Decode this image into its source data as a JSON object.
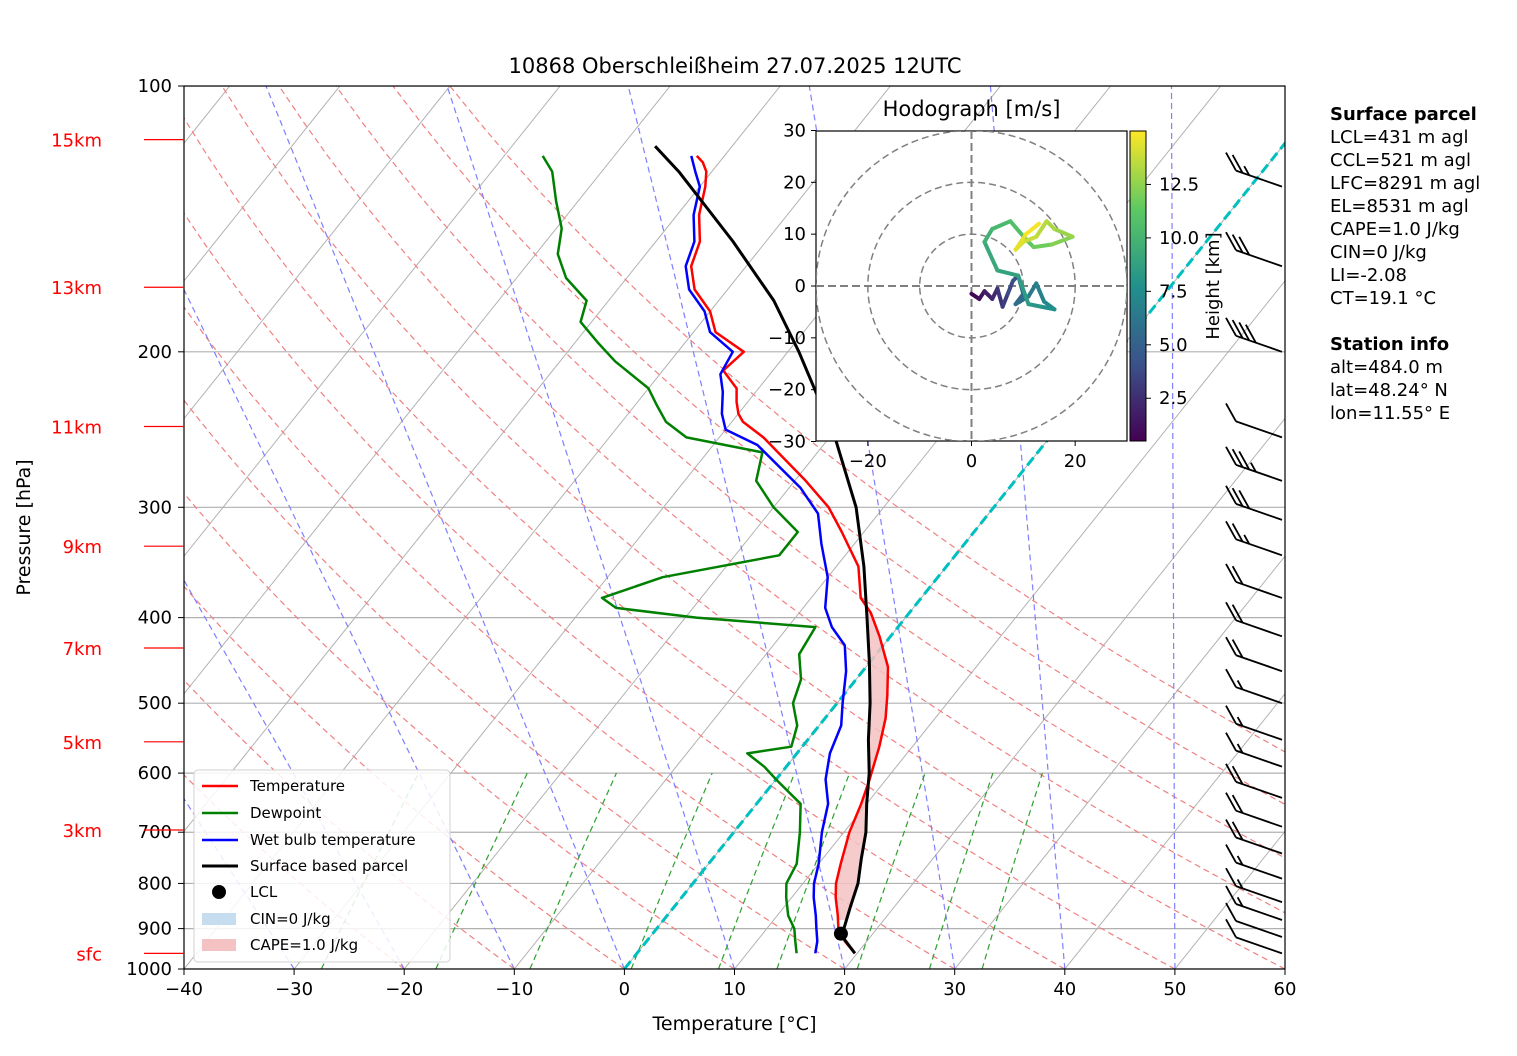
{
  "chart_data": {
    "type": "line",
    "title": "10868 Oberschleißheim 27.07.2025 12UTC",
    "xlabel": "Temperature [°C]",
    "ylabel": "Pressure [hPa]",
    "xlim": [
      -40,
      60
    ],
    "ylim": [
      1000,
      100
    ],
    "y_scale": "log",
    "x_ticks": [
      "−40",
      "−30",
      "−20",
      "−10",
      "0",
      "10",
      "20",
      "30",
      "40",
      "50",
      "60"
    ],
    "y_ticks": [
      {
        "p": 100,
        "label": "100"
      },
      {
        "p": 200,
        "label": "200"
      },
      {
        "p": 300,
        "label": "300"
      },
      {
        "p": 400,
        "label": "400"
      },
      {
        "p": 500,
        "label": "500"
      },
      {
        "p": 600,
        "label": "600"
      },
      {
        "p": 700,
        "label": "700"
      },
      {
        "p": 800,
        "label": "800"
      },
      {
        "p": 900,
        "label": "900"
      },
      {
        "p": 1000,
        "label": "1000"
      }
    ],
    "height_labels": [
      {
        "p": 960,
        "label": "sfc"
      },
      {
        "p": 696,
        "label": "3km"
      },
      {
        "p": 553,
        "label": "5km"
      },
      {
        "p": 433,
        "label": "7km"
      },
      {
        "p": 332,
        "label": "9km"
      },
      {
        "p": 243,
        "label": "11km"
      },
      {
        "p": 169,
        "label": "13km"
      },
      {
        "p": 115,
        "label": "15km"
      }
    ],
    "grid": true,
    "legend_position": "lower-left",
    "legend": [
      "Temperature",
      "Dewpoint",
      "Wet bulb temperature",
      "Surface based parcel",
      "LCL",
      "CIN=0 J/kg",
      "CAPE=1.0 J/kg"
    ],
    "colors": {
      "temperature": "#ff0000",
      "dewpoint": "#008000",
      "wetbulb": "#0000ff",
      "parcel": "#000000",
      "cape_fill": "#f4c2c2",
      "cin_fill": "#c6dcef",
      "height_axis": "#ff0000",
      "isotherm_zero": "#00bfbf"
    },
    "series": [
      {
        "name": "Temperature",
        "points": [
          [
            19.8,
            960
          ],
          [
            18.0,
            930
          ],
          [
            16.5,
            900
          ],
          [
            15.5,
            870
          ],
          [
            14.0,
            830
          ],
          [
            13.0,
            800
          ],
          [
            12.0,
            760
          ],
          [
            10.5,
            700
          ],
          [
            9.5,
            650
          ],
          [
            8.5,
            610
          ],
          [
            7.0,
            560
          ],
          [
            5.5,
            520
          ],
          [
            4.0,
            490
          ],
          [
            2.0,
            455
          ],
          [
            -1.0,
            420
          ],
          [
            -3.5,
            395
          ],
          [
            -5.5,
            380
          ],
          [
            -8.0,
            350
          ],
          [
            -12.0,
            320
          ],
          [
            -15.0,
            300
          ],
          [
            -19.0,
            280
          ],
          [
            -26.0,
            250
          ],
          [
            -29.0,
            240
          ],
          [
            -30.0,
            235
          ],
          [
            -31.0,
            228
          ],
          [
            -32.0,
            220
          ],
          [
            -34.5,
            210
          ],
          [
            -34.0,
            200
          ],
          [
            -38.0,
            190
          ],
          [
            -40.0,
            180
          ],
          [
            -43.0,
            170
          ],
          [
            -45.0,
            160
          ],
          [
            -46.0,
            150
          ],
          [
            -48.0,
            140
          ],
          [
            -49.5,
            130
          ],
          [
            -50.5,
            125
          ],
          [
            -51.5,
            122
          ],
          [
            -52.5,
            120
          ]
        ]
      },
      {
        "name": "Dewpoint",
        "points": [
          [
            14.5,
            960
          ],
          [
            13.5,
            930
          ],
          [
            12.5,
            900
          ],
          [
            11.0,
            870
          ],
          [
            9.5,
            830
          ],
          [
            8.5,
            800
          ],
          [
            8.0,
            760
          ],
          [
            6.0,
            700
          ],
          [
            4.0,
            650
          ],
          [
            0.0,
            610
          ],
          [
            -2.0,
            590
          ],
          [
            -4.5,
            570
          ],
          [
            -1.0,
            560
          ],
          [
            -2.0,
            530
          ],
          [
            -4.0,
            500
          ],
          [
            -5.0,
            470
          ],
          [
            -7.0,
            440
          ],
          [
            -7.5,
            410
          ],
          [
            -19.0,
            400
          ],
          [
            -27.0,
            390
          ],
          [
            -29.0,
            380
          ],
          [
            -25.0,
            360
          ],
          [
            -16.0,
            340
          ],
          [
            -16.0,
            320
          ],
          [
            -20.0,
            300
          ],
          [
            -23.5,
            280
          ],
          [
            -25.0,
            260
          ],
          [
            -33.0,
            250
          ],
          [
            -36.0,
            240
          ],
          [
            -38.0,
            230
          ],
          [
            -40.0,
            220
          ],
          [
            -45.0,
            205
          ],
          [
            -48.0,
            195
          ],
          [
            -51.0,
            185
          ],
          [
            -52.0,
            175
          ],
          [
            -55.5,
            165
          ],
          [
            -58.0,
            155
          ],
          [
            -59.5,
            145
          ],
          [
            -62.0,
            135
          ],
          [
            -64.5,
            125
          ],
          [
            -66.5,
            120
          ]
        ]
      },
      {
        "name": "Wet bulb temperature",
        "points": [
          [
            16.2,
            960
          ],
          [
            15.5,
            930
          ],
          [
            14.5,
            900
          ],
          [
            13.5,
            870
          ],
          [
            12.0,
            830
          ],
          [
            11.0,
            800
          ],
          [
            10.0,
            760
          ],
          [
            8.0,
            700
          ],
          [
            6.5,
            650
          ],
          [
            4.5,
            610
          ],
          [
            3.0,
            570
          ],
          [
            2.0,
            530
          ],
          [
            0.5,
            500
          ],
          [
            -1.5,
            460
          ],
          [
            -3.5,
            430
          ],
          [
            -6.0,
            410
          ],
          [
            -8.0,
            390
          ],
          [
            -10.0,
            360
          ],
          [
            -13.0,
            330
          ],
          [
            -15.5,
            305
          ],
          [
            -19.0,
            285
          ],
          [
            -26.0,
            255
          ],
          [
            -30.0,
            245
          ],
          [
            -31.5,
            235
          ],
          [
            -33.0,
            222
          ],
          [
            -34.5,
            212
          ],
          [
            -35.0,
            200
          ],
          [
            -38.5,
            190
          ],
          [
            -40.5,
            180
          ],
          [
            -43.5,
            170
          ],
          [
            -45.5,
            160
          ],
          [
            -46.5,
            150
          ],
          [
            -48.5,
            140
          ],
          [
            -50.0,
            130
          ],
          [
            -51.5,
            125
          ],
          [
            -53.0,
            120
          ]
        ]
      },
      {
        "name": "Surface based parcel",
        "points": [
          [
            19.8,
            960
          ],
          [
            17.2,
            915
          ],
          [
            17.0,
            900
          ],
          [
            16.0,
            850
          ],
          [
            15.0,
            800
          ],
          [
            13.5,
            750
          ],
          [
            12.0,
            700
          ],
          [
            10.0,
            650
          ],
          [
            8.0,
            600
          ],
          [
            5.5,
            550
          ],
          [
            3.0,
            500
          ],
          [
            0.0,
            450
          ],
          [
            -3.5,
            400
          ],
          [
            -7.5,
            350
          ],
          [
            -12.5,
            300
          ],
          [
            -19.5,
            250
          ],
          [
            -29.0,
            200
          ],
          [
            -35.0,
            175
          ],
          [
            -43.0,
            150
          ],
          [
            -53.0,
            125
          ],
          [
            -57.0,
            117
          ]
        ]
      }
    ],
    "lcl": {
      "label": "LCL",
      "t": 17.1,
      "p": 912
    },
    "cape_fill_range_hPa": [
      880,
      395
    ],
    "skew_isotherms_every_c": 10,
    "dry_adiabat_theta_c": [
      -20,
      -10,
      0,
      10,
      20,
      30,
      40,
      50,
      60,
      70,
      80,
      90,
      100
    ],
    "moist_adiabat_surface_c": [
      -30,
      -20,
      -10,
      0,
      10,
      20,
      30,
      40,
      50
    ],
    "mixing_ratio_lines": [
      0.4,
      1,
      2,
      4,
      7,
      10,
      16,
      24,
      32
    ],
    "wind_barbs": [
      {
        "p": 960,
        "speed_kt": 10
      },
      {
        "p": 920,
        "speed_kt": 10
      },
      {
        "p": 880,
        "speed_kt": 15
      },
      {
        "p": 840,
        "speed_kt": 15
      },
      {
        "p": 790,
        "speed_kt": 15
      },
      {
        "p": 740,
        "speed_kt": 20
      },
      {
        "p": 690,
        "speed_kt": 20
      },
      {
        "p": 640,
        "speed_kt": 20
      },
      {
        "p": 590,
        "speed_kt": 15
      },
      {
        "p": 550,
        "speed_kt": 15
      },
      {
        "p": 500,
        "speed_kt": 15
      },
      {
        "p": 460,
        "speed_kt": 20
      },
      {
        "p": 420,
        "speed_kt": 20
      },
      {
        "p": 380,
        "speed_kt": 20
      },
      {
        "p": 340,
        "speed_kt": 25
      },
      {
        "p": 310,
        "speed_kt": 30
      },
      {
        "p": 280,
        "speed_kt": 35
      },
      {
        "p": 250,
        "speed_kt": 10
      },
      {
        "p": 200,
        "speed_kt": 40
      },
      {
        "p": 160,
        "speed_kt": 30
      },
      {
        "p": 130,
        "speed_kt": 25
      }
    ]
  },
  "hodograph": {
    "title": "Hodograph [m/s]",
    "xlim": [
      -30,
      30
    ],
    "ylim": [
      -30,
      30
    ],
    "x_ticks": [
      "−20",
      "0",
      "20"
    ],
    "y_ticks": [
      {
        "v": 30,
        "label": "30"
      },
      {
        "v": 20,
        "label": "20"
      },
      {
        "v": 10,
        "label": "10"
      },
      {
        "v": 0,
        "label": "0"
      },
      {
        "v": -10,
        "label": "−10"
      },
      {
        "v": -20,
        "label": "−20"
      },
      {
        "v": -30,
        "label": "−30"
      }
    ],
    "rings_ms": [
      10,
      20,
      30
    ],
    "colorbar_label": "Height [km]",
    "colorbar_ticks": [
      {
        "v": 2.5,
        "label": "2.5"
      },
      {
        "v": 5.0,
        "label": "5.0"
      },
      {
        "v": 7.5,
        "label": "7.5"
      },
      {
        "v": 10.0,
        "label": "10.0"
      },
      {
        "v": 12.5,
        "label": "12.5"
      }
    ],
    "colorbar_range_km": [
      0.5,
      15.0
    ],
    "trace": [
      {
        "u": 0.0,
        "v": -1.5,
        "z": 0.5
      },
      {
        "u": 1.5,
        "v": -2.5,
        "z": 1.0
      },
      {
        "u": 2.5,
        "v": -1.0,
        "z": 1.5
      },
      {
        "u": 4.0,
        "v": -2.5,
        "z": 2.0
      },
      {
        "u": 5.0,
        "v": -0.5,
        "z": 2.5
      },
      {
        "u": 6.0,
        "v": -4.0,
        "z": 3.0
      },
      {
        "u": 7.0,
        "v": -1.5,
        "z": 3.5
      },
      {
        "u": 8.0,
        "v": 1.0,
        "z": 4.0
      },
      {
        "u": 9.0,
        "v": 2.0,
        "z": 4.5
      },
      {
        "u": 10.0,
        "v": -1.5,
        "z": 5.0
      },
      {
        "u": 8.5,
        "v": -3.5,
        "z": 5.5
      },
      {
        "u": 11.0,
        "v": -2.0,
        "z": 6.0
      },
      {
        "u": 12.5,
        "v": 0.5,
        "z": 6.5
      },
      {
        "u": 14.0,
        "v": -3.0,
        "z": 7.0
      },
      {
        "u": 16.0,
        "v": -4.5,
        "z": 7.5
      },
      {
        "u": 13.5,
        "v": -4.0,
        "z": 8.0
      },
      {
        "u": 11.0,
        "v": -3.5,
        "z": 8.3
      },
      {
        "u": 9.0,
        "v": 2.0,
        "z": 8.6
      },
      {
        "u": 5.0,
        "v": 3.0,
        "z": 9.0
      },
      {
        "u": 2.5,
        "v": 8.5,
        "z": 9.5
      },
      {
        "u": 4.0,
        "v": 11.0,
        "z": 10.0
      },
      {
        "u": 7.5,
        "v": 12.5,
        "z": 10.5
      },
      {
        "u": 10.5,
        "v": 9.0,
        "z": 11.0
      },
      {
        "u": 12.0,
        "v": 7.5,
        "z": 11.5
      },
      {
        "u": 15.5,
        "v": 8.0,
        "z": 12.0
      },
      {
        "u": 19.5,
        "v": 9.5,
        "z": 12.5
      },
      {
        "u": 16.0,
        "v": 11.0,
        "z": 13.0
      },
      {
        "u": 14.5,
        "v": 12.5,
        "z": 13.3
      },
      {
        "u": 12.5,
        "v": 9.5,
        "z": 13.6
      },
      {
        "u": 10.0,
        "v": 8.5,
        "z": 14.0
      },
      {
        "u": 8.5,
        "v": 7.0,
        "z": 14.3
      },
      {
        "u": 10.5,
        "v": 10.0,
        "z": 14.6
      },
      {
        "u": 13.0,
        "v": 12.0,
        "z": 15.0
      }
    ]
  },
  "info": {
    "surface_title": "Surface parcel",
    "surface_lines": [
      "LCL=431 m agl",
      "CCL=521 m agl",
      "LFC=8291 m agl",
      "EL=8531 m agl",
      "CAPE=1.0 J/kg",
      "CIN=0 J/kg",
      "LI=-2.08",
      "CT=19.1 °C"
    ],
    "station_title": "Station info",
    "station_lines": [
      "alt=484.0 m",
      "lat=48.24° N",
      "lon=11.55° E"
    ]
  }
}
